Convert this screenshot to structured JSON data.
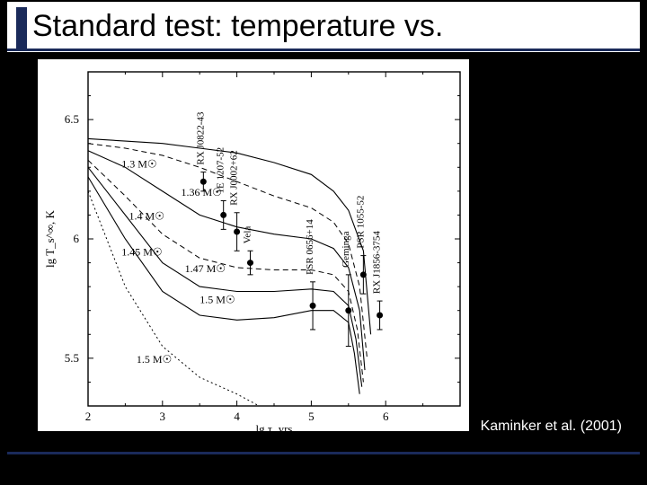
{
  "slide": {
    "title": "Standard test: temperature vs.",
    "citation": "Kaminker et al. (2001)",
    "background_color": "#000000",
    "accent_color": "#1a2a5a"
  },
  "chart": {
    "type": "line",
    "background_color": "#ffffff",
    "xlabel": "lg τ, yrs",
    "ylabel": "lg T_s^∞, K",
    "label_fontsize": 13,
    "xlim": [
      2,
      7
    ],
    "ylim": [
      5.3,
      6.7
    ],
    "xticks": [
      2,
      3,
      4,
      5,
      6
    ],
    "yticks": [
      5.5,
      6,
      6.5
    ],
    "line_color": "#000000",
    "line_width": 1.1,
    "series": [
      {
        "label": "1.3 M☉",
        "x": [
          2,
          2.5,
          3,
          3.5,
          4,
          4.5,
          5,
          5.3,
          5.5,
          5.7,
          5.8
        ],
        "y": [
          6.42,
          6.41,
          6.4,
          6.38,
          6.36,
          6.32,
          6.27,
          6.2,
          6.12,
          5.95,
          5.6
        ],
        "style": "solid"
      },
      {
        "label": "1.36 M☉",
        "x": [
          2,
          2.5,
          3,
          3.5,
          4,
          4.5,
          5,
          5.3,
          5.5,
          5.65,
          5.75
        ],
        "y": [
          6.4,
          6.38,
          6.35,
          6.3,
          6.24,
          6.18,
          6.13,
          6.07,
          5.98,
          5.8,
          5.5
        ],
        "style": "dashed"
      },
      {
        "label": "1.4 M☉",
        "x": [
          2,
          2.5,
          3,
          3.5,
          4,
          4.5,
          5,
          5.3,
          5.5,
          5.65,
          5.72
        ],
        "y": [
          6.37,
          6.3,
          6.2,
          6.1,
          6.05,
          6.02,
          6.0,
          5.96,
          5.88,
          5.7,
          5.45
        ],
        "style": "solid"
      },
      {
        "label": "1.45 M☉",
        "x": [
          2,
          2.5,
          3,
          3.5,
          4,
          4.5,
          5,
          5.3,
          5.5,
          5.62,
          5.7
        ],
        "y": [
          6.33,
          6.18,
          6.02,
          5.92,
          5.88,
          5.87,
          5.87,
          5.85,
          5.78,
          5.62,
          5.4
        ],
        "style": "dashed"
      },
      {
        "label": "1.47 M☉",
        "x": [
          2,
          2.5,
          3,
          3.5,
          4,
          4.5,
          5,
          5.3,
          5.5,
          5.6,
          5.68
        ],
        "y": [
          6.3,
          6.1,
          5.9,
          5.8,
          5.78,
          5.78,
          5.79,
          5.78,
          5.72,
          5.58,
          5.38
        ],
        "style": "solid"
      },
      {
        "label": "1.5 M☉",
        "x": [
          2,
          2.5,
          3,
          3.5,
          4,
          4.5,
          5,
          5.3,
          5.5,
          5.58,
          5.65
        ],
        "y": [
          6.26,
          6.0,
          5.78,
          5.68,
          5.66,
          5.67,
          5.7,
          5.7,
          5.65,
          5.52,
          5.35
        ],
        "style": "solid"
      },
      {
        "label": "1.5 M☉",
        "x": [
          2,
          2.5,
          3,
          3.5,
          4,
          4.3
        ],
        "y": [
          6.2,
          5.8,
          5.55,
          5.42,
          5.35,
          5.3
        ],
        "style": "dotted"
      }
    ],
    "series_label_positions": [
      {
        "label": "1.3 M☉",
        "x": 2.45,
        "y": 6.3
      },
      {
        "label": "1.36 M☉",
        "x": 3.25,
        "y": 6.18
      },
      {
        "label": "1.4 M☉",
        "x": 2.55,
        "y": 6.08
      },
      {
        "label": "1.45 M☉",
        "x": 2.45,
        "y": 5.93
      },
      {
        "label": "1.47 M☉",
        "x": 3.3,
        "y": 5.86
      },
      {
        "label": "1.5 M☉",
        "x": 3.5,
        "y": 5.73
      },
      {
        "label": "1.5 M☉",
        "x": 2.65,
        "y": 5.48
      }
    ],
    "data_points": [
      {
        "name": "RX J0822-43",
        "x": 3.55,
        "y": 6.24,
        "y_err": 0.04
      },
      {
        "name": "1E 1207-52",
        "x": 3.82,
        "y": 6.1,
        "y_err": 0.06
      },
      {
        "name": "RX J0002+62",
        "x": 4.0,
        "y": 6.03,
        "y_err": 0.08
      },
      {
        "name": "Vela",
        "x": 4.18,
        "y": 5.9,
        "y_err": 0.05
      },
      {
        "name": "PSR 0656+14",
        "x": 5.02,
        "y": 5.72,
        "y_err": 0.1
      },
      {
        "name": "Geminga",
        "x": 5.5,
        "y": 5.7,
        "y_err": 0.15
      },
      {
        "name": "PSR 1055-52",
        "x": 5.7,
        "y": 5.85,
        "y_err": 0.08
      },
      {
        "name": "RX J1856-3754",
        "x": 5.92,
        "y": 5.68,
        "y_err": 0.06
      }
    ],
    "marker_size": 3.5,
    "marker_color": "#000000",
    "errorbar_color": "#000000"
  }
}
